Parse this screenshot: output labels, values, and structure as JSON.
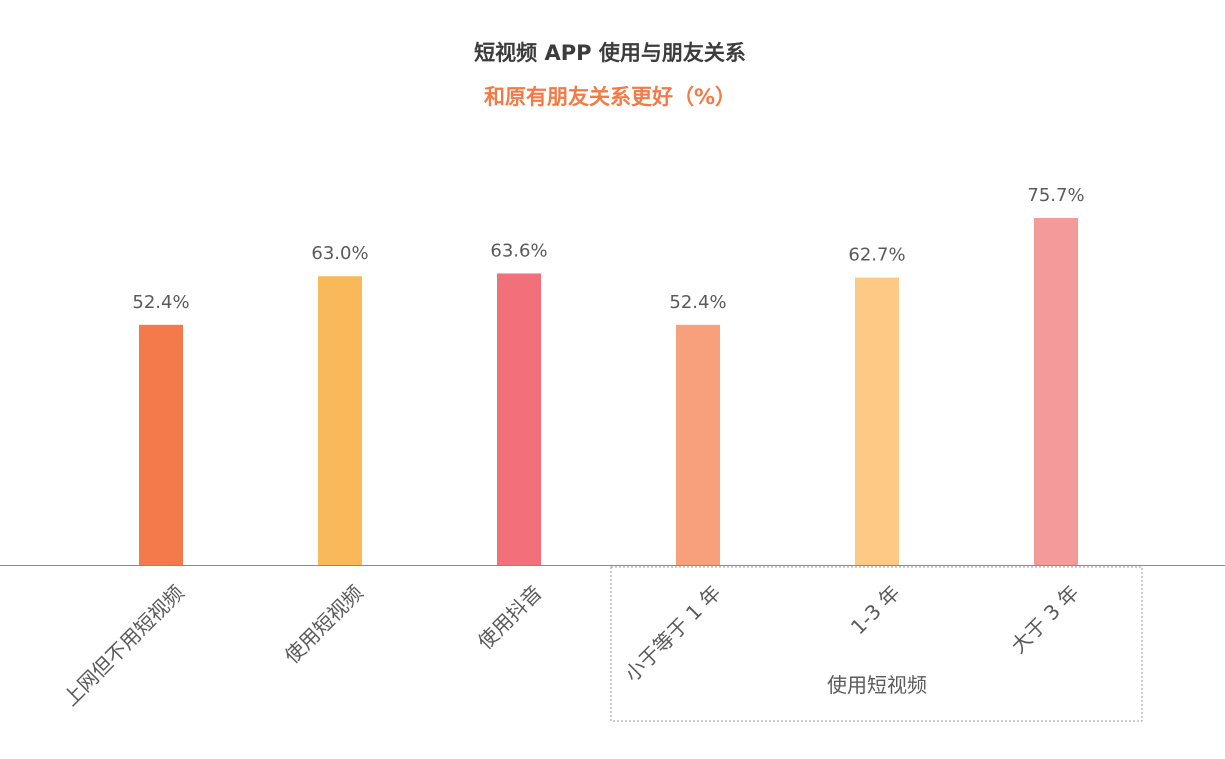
{
  "title": "短视频 APP 使用与朋友关系",
  "subtitle": "和原有朋友关系更好（%）",
  "group_label": "使用短视频",
  "chart_data": {
    "type": "bar",
    "title": "短视频 APP 使用与朋友关系",
    "subtitle": "和原有朋友关系更好（%）",
    "categories": [
      "上网但不用短视频",
      "使用短视频",
      "使用抖音",
      "小于等于 1 年",
      "1-3 年",
      "大于 3 年"
    ],
    "values": [
      52.4,
      63.0,
      63.6,
      52.4,
      62.7,
      75.7
    ],
    "value_labels": [
      "52.4%",
      "63.0%",
      "63.6%",
      "52.4%",
      "62.7%",
      "75.7%"
    ],
    "colors": [
      "#f47a4b",
      "#f9b95b",
      "#f2707a",
      "#f7a07b",
      "#fcca85",
      "#f59a9a"
    ],
    "ylim": [
      0,
      100
    ],
    "grid": false,
    "legend": "none",
    "group": {
      "label": "使用短视频",
      "categories": [
        "小于等于 1 年",
        "1-3 年",
        "大于 3 年"
      ]
    }
  }
}
